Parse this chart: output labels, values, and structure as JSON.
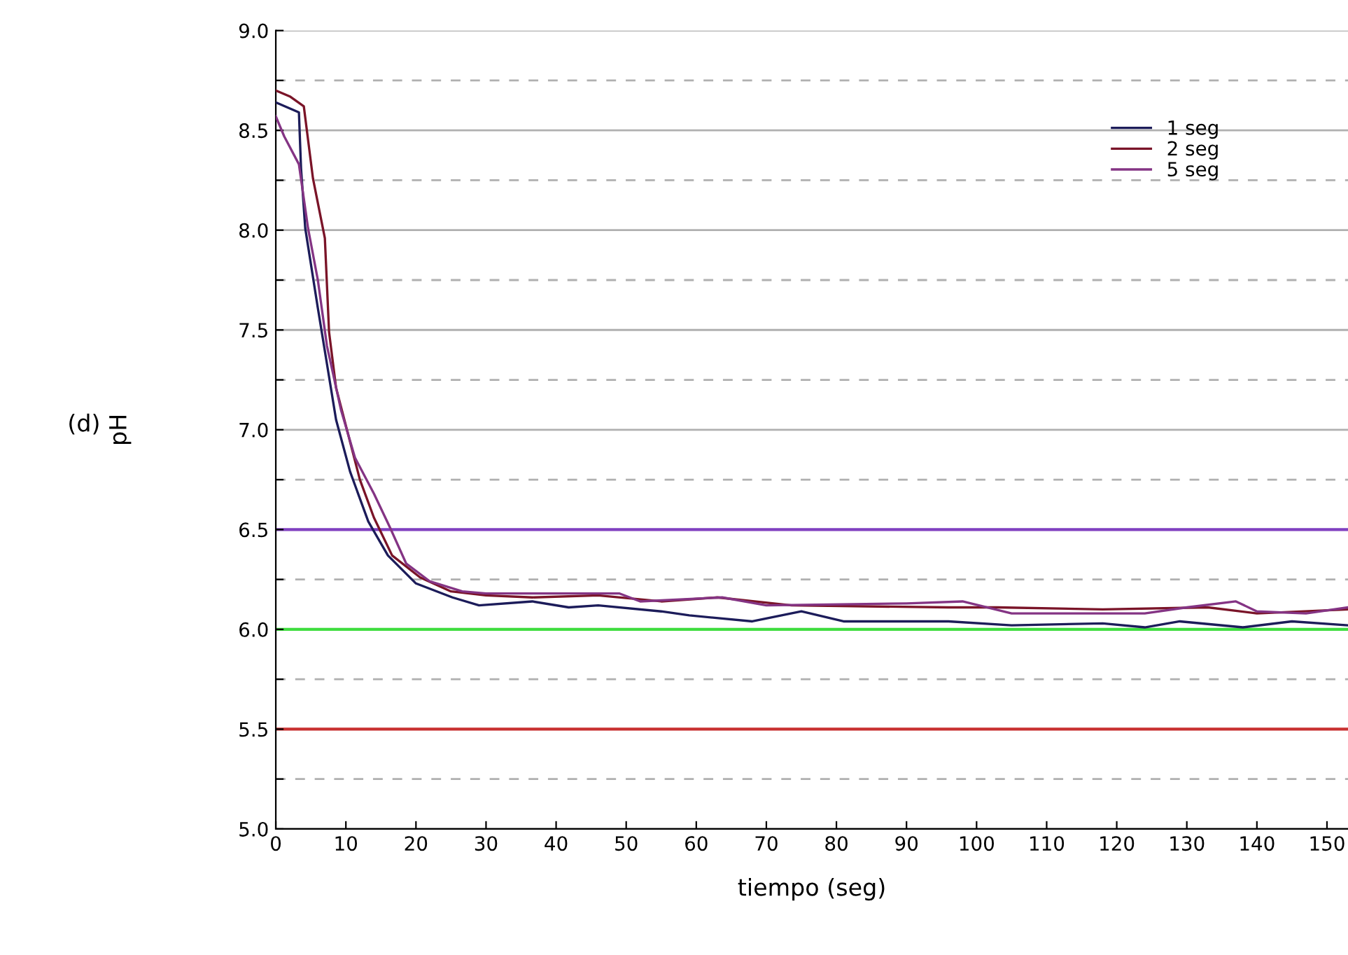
{
  "chart_data": {
    "type": "line",
    "xlabel": "tiempo (seg)",
    "ylabel": "pH",
    "annotations": [
      "(d)"
    ],
    "xlim": [
      0,
      153
    ],
    "ylim": [
      5.0,
      9.0
    ],
    "xticks": [
      0,
      10,
      20,
      30,
      40,
      50,
      60,
      70,
      80,
      90,
      100,
      110,
      120,
      130,
      140,
      150
    ],
    "yticks": [
      {
        "value": 5.0,
        "label": "5.0"
      },
      {
        "value": 5.25,
        "label": null
      },
      {
        "value": 5.5,
        "label": "5.5"
      },
      {
        "value": 5.75,
        "label": null
      },
      {
        "value": 6.0,
        "label": "6.0"
      },
      {
        "value": 6.25,
        "label": null
      },
      {
        "value": 6.5,
        "label": "6.5"
      },
      {
        "value": 6.75,
        "label": null
      },
      {
        "value": 7.0,
        "label": "7.0"
      },
      {
        "value": 7.25,
        "label": null
      },
      {
        "value": 7.5,
        "label": "7.5"
      },
      {
        "value": 7.75,
        "label": null
      },
      {
        "value": 8.0,
        "label": "8.0"
      },
      {
        "value": 8.25,
        "label": null
      },
      {
        "value": 8.5,
        "label": "8.5"
      },
      {
        "value": 8.75,
        "label": null
      },
      {
        "value": 9.0,
        "label": "9.0"
      }
    ],
    "grid": "y",
    "legend": "top right",
    "ref_lines": [
      {
        "axis": "y",
        "value": 6.5,
        "color": "#8040c0"
      },
      {
        "axis": "y",
        "value": 6.0,
        "color": "#40dd40"
      },
      {
        "axis": "y",
        "value": 5.5,
        "color": "#c83030"
      }
    ],
    "series": [
      {
        "name": "1 seg",
        "color": "#1c1c5a",
        "x": [
          0,
          3.3,
          3.6,
          4.2,
          6,
          7.3,
          8.6,
          10.6,
          13.2,
          16,
          20,
          25.2,
          29,
          36.6,
          41.8,
          46,
          55,
          59,
          68,
          75,
          81,
          96,
          105,
          118,
          124,
          129,
          138,
          145,
          153
        ],
        "values": [
          8.64,
          8.59,
          8.31,
          8.01,
          7.61,
          7.33,
          7.05,
          6.79,
          6.54,
          6.37,
          6.23,
          6.16,
          6.12,
          6.14,
          6.11,
          6.12,
          6.09,
          6.07,
          6.04,
          6.09,
          6.04,
          6.04,
          6.02,
          6.03,
          6.01,
          6.04,
          6.01,
          6.04,
          6.02
        ]
      },
      {
        "name": "2 seg",
        "color": "#7a1428",
        "x": [
          0,
          2,
          4,
          5.3,
          7,
          7.6,
          8.6,
          10.3,
          12,
          14,
          16.6,
          20.6,
          25,
          30,
          36.6,
          46,
          55,
          63,
          73.6,
          96,
          103,
          118,
          133,
          140,
          153
        ],
        "values": [
          8.7,
          8.67,
          8.62,
          8.26,
          7.96,
          7.49,
          7.21,
          6.98,
          6.75,
          6.56,
          6.37,
          6.26,
          6.19,
          6.17,
          6.16,
          6.17,
          6.14,
          6.16,
          6.12,
          6.11,
          6.11,
          6.1,
          6.11,
          6.08,
          6.1
        ]
      },
      {
        "name": "5 seg",
        "color": "#843484",
        "x": [
          0,
          1.2,
          3.3,
          4.6,
          6,
          7.3,
          9.3,
          11.3,
          14,
          16.3,
          18.6,
          22,
          26.6,
          30,
          36.6,
          49,
          52,
          63.7,
          70,
          90,
          98,
          105,
          113,
          124,
          130,
          137,
          140,
          147,
          153
        ],
        "values": [
          8.57,
          8.47,
          8.33,
          8.01,
          7.75,
          7.42,
          7.1,
          6.86,
          6.68,
          6.51,
          6.33,
          6.24,
          6.19,
          6.18,
          6.18,
          6.18,
          6.14,
          6.16,
          6.12,
          6.13,
          6.14,
          6.08,
          6.08,
          6.08,
          6.11,
          6.14,
          6.09,
          6.08,
          6.11
        ]
      }
    ]
  }
}
